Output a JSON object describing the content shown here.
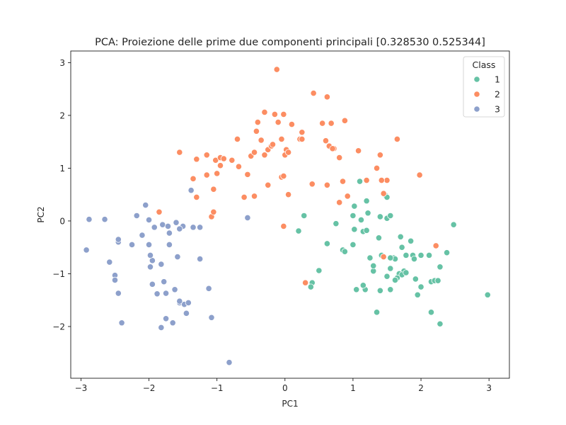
{
  "chart_data": {
    "type": "scatter",
    "title": "PCA: Proiezione delle prime due componenti principali [0.328530 0.525344]",
    "xlabel": "PC1",
    "ylabel": "PC2",
    "xlim": [
      -3.15,
      3.3
    ],
    "ylim": [
      -2.98,
      3.22
    ],
    "xticks": [
      -3,
      -2,
      -1,
      0,
      1,
      2,
      3
    ],
    "yticks": [
      -2,
      -1,
      0,
      1,
      2,
      3
    ],
    "xtick_labels": [
      "−3",
      "−2",
      "−1",
      "0",
      "1",
      "2",
      "3"
    ],
    "ytick_labels": [
      "−2",
      "−1",
      "0",
      "1",
      "2",
      "3"
    ],
    "grid": false,
    "legend": {
      "title": "Class",
      "position": "top-right"
    },
    "series": [
      {
        "name": "1",
        "color": "#66c2a5",
        "points": [
          [
            0.28,
            0.1
          ],
          [
            0.2,
            -0.19
          ],
          [
            0.62,
            -0.43
          ],
          [
            0.5,
            -0.94
          ],
          [
            0.4,
            -1.17
          ],
          [
            0.38,
            -1.25
          ],
          [
            0.85,
            -0.55
          ],
          [
            0.88,
            -0.58
          ],
          [
            0.75,
            -0.05
          ],
          [
            0.8,
            0.35
          ],
          [
            1.0,
            0.1
          ],
          [
            1.02,
            -0.16
          ],
          [
            1.0,
            -0.45
          ],
          [
            1.02,
            0.28
          ],
          [
            1.1,
            0.75
          ],
          [
            1.12,
            0.02
          ],
          [
            1.2,
            0.38
          ],
          [
            1.22,
            0.15
          ],
          [
            1.15,
            -0.2
          ],
          [
            1.2,
            -0.18
          ],
          [
            1.25,
            -0.7
          ],
          [
            1.3,
            -0.95
          ],
          [
            1.3,
            -0.85
          ],
          [
            1.38,
            -0.32
          ],
          [
            1.4,
            0.08
          ],
          [
            1.5,
            0.05
          ],
          [
            1.55,
            0.1
          ],
          [
            1.48,
            0.48
          ],
          [
            1.42,
            -0.65
          ],
          [
            1.45,
            -0.68
          ],
          [
            1.5,
            -1.05
          ],
          [
            1.55,
            -0.9
          ],
          [
            1.6,
            -0.7
          ],
          [
            1.62,
            -0.72
          ],
          [
            1.7,
            -0.3
          ],
          [
            1.72,
            -0.5
          ],
          [
            1.78,
            -0.65
          ],
          [
            1.75,
            -0.95
          ],
          [
            1.68,
            -1.0
          ],
          [
            1.72,
            -1.02
          ],
          [
            1.78,
            -0.98
          ],
          [
            1.85,
            -0.38
          ],
          [
            1.88,
            -0.65
          ],
          [
            1.9,
            -0.72
          ],
          [
            1.92,
            -1.1
          ],
          [
            1.65,
            -1.08
          ],
          [
            1.62,
            -1.12
          ],
          [
            1.55,
            -1.3
          ],
          [
            1.4,
            -1.32
          ],
          [
            1.35,
            -1.73
          ],
          [
            1.18,
            -1.3
          ],
          [
            1.15,
            -1.22
          ],
          [
            1.05,
            -1.3
          ],
          [
            1.95,
            -1.4
          ],
          [
            2.0,
            -1.25
          ],
          [
            2.0,
            -0.65
          ],
          [
            2.12,
            -0.65
          ],
          [
            2.15,
            -1.15
          ],
          [
            2.2,
            -1.13
          ],
          [
            2.25,
            -1.13
          ],
          [
            2.28,
            -0.87
          ],
          [
            2.15,
            -1.73
          ],
          [
            2.28,
            -1.95
          ],
          [
            2.38,
            -0.6
          ],
          [
            2.48,
            -0.07
          ],
          [
            2.98,
            -1.4
          ],
          [
            1.5,
            0.45
          ],
          [
            1.55,
            -0.7
          ]
        ]
      },
      {
        "name": "2",
        "color": "#fc8d62",
        "points": [
          [
            -1.55,
            1.3
          ],
          [
            -1.3,
            1.17
          ],
          [
            -1.15,
            1.25
          ],
          [
            -1.02,
            1.15
          ],
          [
            -0.95,
            1.2
          ],
          [
            -0.9,
            1.18
          ],
          [
            -0.78,
            1.15
          ],
          [
            -0.7,
            1.55
          ],
          [
            -0.5,
            1.23
          ],
          [
            -0.45,
            1.3
          ],
          [
            -0.42,
            1.7
          ],
          [
            -0.4,
            1.87
          ],
          [
            -0.35,
            1.53
          ],
          [
            -0.3,
            1.25
          ],
          [
            -0.25,
            1.35
          ],
          [
            -0.2,
            1.42
          ],
          [
            -0.18,
            1.45
          ],
          [
            -0.1,
            1.87
          ],
          [
            -0.05,
            1.55
          ],
          [
            0.02,
            1.35
          ],
          [
            0.0,
            1.25
          ],
          [
            0.05,
            1.3
          ],
          [
            0.1,
            1.83
          ],
          [
            0.22,
            1.55
          ],
          [
            0.25,
            1.68
          ],
          [
            0.42,
            2.42
          ],
          [
            0.55,
            1.85
          ],
          [
            0.62,
            2.35
          ],
          [
            0.68,
            1.85
          ],
          [
            0.6,
            1.52
          ],
          [
            0.65,
            1.42
          ],
          [
            0.72,
            1.37
          ],
          [
            0.7,
            1.37
          ],
          [
            0.8,
            1.2
          ],
          [
            0.88,
            1.9
          ],
          [
            1.08,
            1.33
          ],
          [
            1.4,
            1.25
          ],
          [
            1.65,
            1.55
          ],
          [
            1.42,
            0.77
          ],
          [
            1.45,
            0.52
          ],
          [
            1.35,
            1.0
          ],
          [
            1.2,
            0.77
          ],
          [
            1.5,
            0.77
          ],
          [
            1.98,
            0.87
          ],
          [
            0.85,
            0.75
          ],
          [
            0.92,
            0.47
          ],
          [
            0.8,
            0.35
          ],
          [
            0.62,
            0.68
          ],
          [
            0.4,
            0.7
          ],
          [
            0.05,
            0.5
          ],
          [
            -0.05,
            0.83
          ],
          [
            -0.25,
            0.68
          ],
          [
            -0.55,
            0.88
          ],
          [
            -0.6,
            0.45
          ],
          [
            -0.45,
            0.47
          ],
          [
            -0.68,
            1.03
          ],
          [
            -0.95,
            1.05
          ],
          [
            -1.0,
            0.9
          ],
          [
            -1.15,
            0.87
          ],
          [
            -1.05,
            0.6
          ],
          [
            -1.3,
            0.45
          ],
          [
            -1.35,
            0.8
          ],
          [
            -1.08,
            0.08
          ],
          [
            -1.05,
            0.17
          ],
          [
            -1.85,
            0.17
          ],
          [
            -0.3,
            2.06
          ],
          [
            -0.15,
            2.02
          ],
          [
            -0.02,
            2.02
          ],
          [
            -0.12,
            2.87
          ],
          [
            -0.02,
            2.02
          ],
          [
            -0.02,
            0.85
          ],
          [
            0.25,
            1.55
          ],
          [
            0.3,
            -1.17
          ],
          [
            2.22,
            -0.47
          ],
          [
            -0.02,
            -0.1
          ],
          [
            1.45,
            -0.68
          ],
          [
            1.42,
            0.77
          ]
        ]
      },
      {
        "name": "3",
        "color": "#8da0cb",
        "points": [
          [
            -2.88,
            0.03
          ],
          [
            -2.92,
            -0.55
          ],
          [
            -2.65,
            0.03
          ],
          [
            -2.58,
            -0.78
          ],
          [
            -2.5,
            -1.03
          ],
          [
            -2.5,
            -1.12
          ],
          [
            -2.45,
            -0.4
          ],
          [
            -2.45,
            -1.37
          ],
          [
            -2.4,
            -1.93
          ],
          [
            -2.25,
            -0.45
          ],
          [
            -2.18,
            0.1
          ],
          [
            -2.1,
            -0.27
          ],
          [
            -2.05,
            0.3
          ],
          [
            -2.0,
            -0.45
          ],
          [
            -2.0,
            0.02
          ],
          [
            -1.98,
            -0.87
          ],
          [
            -1.95,
            -0.75
          ],
          [
            -1.95,
            -1.2
          ],
          [
            -1.92,
            -0.12
          ],
          [
            -1.88,
            -1.38
          ],
          [
            -1.82,
            -0.82
          ],
          [
            -1.8,
            -0.07
          ],
          [
            -1.78,
            -1.15
          ],
          [
            -1.75,
            -1.37
          ],
          [
            -1.75,
            -1.85
          ],
          [
            -1.72,
            -0.1
          ],
          [
            -1.7,
            -0.23
          ],
          [
            -1.7,
            -0.45
          ],
          [
            -1.65,
            -1.93
          ],
          [
            -1.62,
            -1.3
          ],
          [
            -1.58,
            -0.68
          ],
          [
            -1.6,
            -0.03
          ],
          [
            -1.55,
            -1.55
          ],
          [
            -1.5,
            -0.1
          ],
          [
            -1.48,
            -1.58
          ],
          [
            -1.45,
            -1.75
          ],
          [
            -1.42,
            -1.55
          ],
          [
            -1.38,
            0.58
          ],
          [
            -1.35,
            -0.12
          ],
          [
            -1.25,
            -0.12
          ],
          [
            -1.25,
            -0.72
          ],
          [
            -1.12,
            -1.28
          ],
          [
            -1.08,
            -1.83
          ],
          [
            -0.82,
            -2.68
          ],
          [
            -0.55,
            0.06
          ],
          [
            -1.82,
            -2.02
          ],
          [
            -2.45,
            -0.35
          ],
          [
            -1.98,
            -0.65
          ],
          [
            -1.55,
            -0.15
          ],
          [
            -1.55,
            -1.52
          ]
        ]
      }
    ]
  }
}
